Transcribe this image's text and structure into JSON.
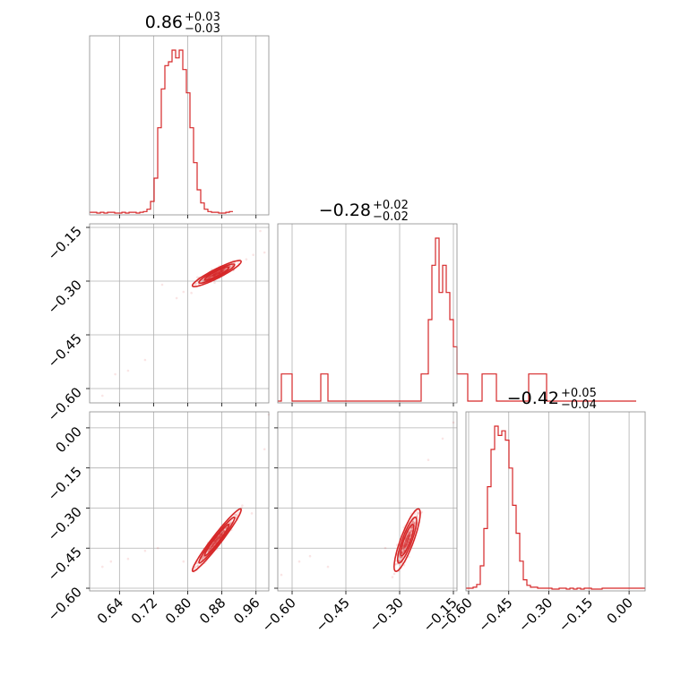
{
  "chart_data": {
    "type": "scatter",
    "kind": "corner-plot",
    "color": "#d62728",
    "grid": true,
    "parameters": [
      {
        "index": 0,
        "range": [
          0.57,
          0.99
        ],
        "ticks": [
          0.64,
          0.72,
          0.8,
          0.88,
          0.96
        ],
        "tick_labels": [
          "0.64",
          "0.72",
          "0.80",
          "0.88",
          "0.96"
        ],
        "title": {
          "median": "0.86",
          "plus": "+0.03",
          "minus": "−0.03"
        }
      },
      {
        "index": 1,
        "range": [
          -0.64,
          -0.14
        ],
        "ticks": [
          -0.6,
          -0.45,
          -0.3,
          -0.15
        ],
        "tick_labels": [
          "−0.60",
          "−0.45",
          "−0.30",
          "−0.15"
        ],
        "title": {
          "median": "−0.28",
          "plus": "+0.02",
          "minus": "−0.02"
        }
      },
      {
        "index": 2,
        "range": [
          -0.61,
          0.06
        ],
        "ticks": [
          -0.6,
          -0.45,
          -0.3,
          -0.15,
          0.0
        ],
        "tick_labels": [
          "−0.60",
          "−0.45",
          "−0.30",
          "−0.15",
          "0.00"
        ],
        "title": {
          "median": "−0.42",
          "plus": "+0.05",
          "minus": "−0.04"
        }
      }
    ],
    "histograms": [
      {
        "param": 0,
        "bin_start": 0.57,
        "bin_width": 0.0084,
        "counts": [
          1,
          1,
          0,
          1,
          0,
          1,
          1,
          0,
          0,
          1,
          0,
          1,
          1,
          0,
          1,
          2,
          5,
          15,
          45,
          110,
          160,
          190,
          195,
          210,
          200,
          210,
          185,
          155,
          110,
          65,
          30,
          13,
          5,
          2,
          1,
          1,
          0,
          0,
          1,
          2
        ]
      },
      {
        "param": 1,
        "bin_start": -0.64,
        "bin_width": 0.01,
        "counts": [
          0,
          1,
          1,
          1,
          0,
          0,
          0,
          0,
          0,
          0,
          0,
          0,
          1,
          1,
          0,
          0,
          0,
          0,
          0,
          0,
          0,
          0,
          0,
          0,
          0,
          0,
          0,
          0,
          0,
          0,
          0,
          0,
          0,
          0,
          0,
          0,
          0,
          0,
          0,
          0,
          1,
          1,
          3,
          5,
          6,
          4,
          5,
          4,
          3,
          2,
          1,
          1,
          1,
          0,
          0,
          0,
          0,
          1,
          1,
          1,
          1,
          0,
          0,
          0,
          0,
          0,
          0,
          0,
          0,
          0,
          1,
          1,
          1,
          1,
          1,
          0,
          0,
          0,
          0,
          0,
          0,
          0,
          0,
          0,
          0,
          0,
          0,
          0,
          0,
          0,
          0,
          0,
          0,
          0,
          0,
          0,
          0,
          0,
          0,
          0
        ]
      },
      {
        "param": 2,
        "bin_start": -0.61,
        "bin_width": 0.0134,
        "counts": [
          1,
          1,
          2,
          5,
          25,
          65,
          110,
          150,
          175,
          165,
          170,
          160,
          130,
          90,
          60,
          30,
          10,
          4,
          2,
          2,
          1,
          1,
          1,
          1,
          0,
          0,
          1,
          1,
          0,
          1,
          0,
          1,
          0,
          1,
          1,
          0,
          0,
          0,
          1,
          1,
          1,
          1,
          1,
          1,
          1,
          1,
          1,
          1,
          1,
          1
        ]
      }
    ],
    "pairs": [
      {
        "x_param": 0,
        "y_param": 1,
        "center": [
          0.868,
          -0.279
        ],
        "spread": [
          0.022,
          0.014
        ],
        "correlation": 0.92,
        "outliers": [
          [
            0.6,
            -0.62
          ],
          [
            0.63,
            -0.56
          ],
          [
            0.66,
            -0.55
          ],
          [
            0.7,
            -0.52
          ],
          [
            0.74,
            -0.31
          ],
          [
            0.79,
            -0.33
          ],
          [
            0.97,
            -0.16
          ],
          [
            0.98,
            -0.22
          ]
        ]
      },
      {
        "x_param": 0,
        "y_param": 2,
        "center": [
          0.868,
          -0.42
        ],
        "spread": [
          0.022,
          0.045
        ],
        "correlation": 0.97,
        "outliers": [
          [
            0.6,
            -0.52
          ],
          [
            0.62,
            -0.5
          ],
          [
            0.66,
            -0.49
          ],
          [
            0.7,
            -0.46
          ],
          [
            0.73,
            -0.45
          ],
          [
            0.79,
            -0.5
          ],
          [
            0.95,
            -0.32
          ],
          [
            0.98,
            -0.08
          ],
          [
            0.99,
            0.05
          ]
        ]
      },
      {
        "x_param": 1,
        "y_param": 2,
        "center": [
          -0.279,
          -0.42
        ],
        "spread": [
          0.014,
          0.045
        ],
        "correlation": 0.85,
        "outliers": [
          [
            -0.63,
            -0.55
          ],
          [
            -0.58,
            -0.5
          ],
          [
            -0.55,
            -0.48
          ],
          [
            -0.5,
            -0.52
          ],
          [
            -0.34,
            -0.45
          ],
          [
            -0.22,
            -0.12
          ],
          [
            -0.18,
            -0.04
          ],
          [
            -0.15,
            0.02
          ]
        ]
      }
    ]
  }
}
